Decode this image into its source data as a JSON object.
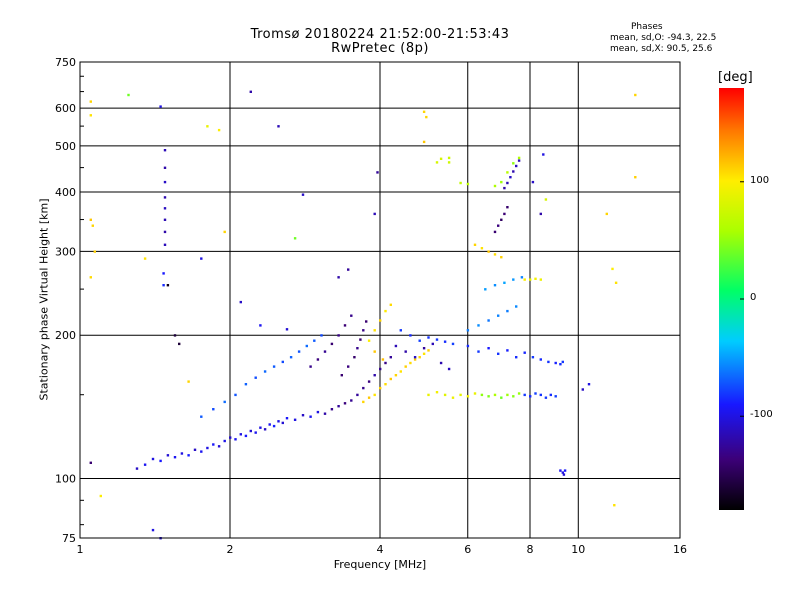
{
  "title": {
    "line1": "Tromsø 20180224 21:52:00-21:53:43",
    "line2": "RwPretec (8p)"
  },
  "phase_stats": {
    "title": "Phases",
    "mean_sd_o": "mean, sd,O: -94.3, 22.5",
    "mean_sd_x": "mean, sd,X:  90.5, 25.6"
  },
  "colorbar": {
    "label": "[deg]",
    "range": [
      -180,
      180
    ],
    "ticks": [
      "100",
      "0",
      "-100"
    ],
    "tick_values": [
      100,
      0,
      -100
    ]
  },
  "chart_data": {
    "type": "scatter",
    "xlabel": "Frequency [MHz]",
    "ylabel": "Stationary phase Virtual Height [km]",
    "x_scale": "log",
    "y_scale": "log",
    "xlim": [
      1,
      16
    ],
    "ylim": [
      75,
      750
    ],
    "xticks": [
      1,
      2,
      4,
      6,
      8,
      10,
      16
    ],
    "xtick_labels": [
      "1",
      "2",
      "4",
      "6",
      "8",
      "10",
      "16"
    ],
    "yticks": [
      75,
      100,
      200,
      300,
      400,
      500,
      600,
      750
    ],
    "ytick_labels": [
      "75",
      "100",
      "200",
      "300",
      "400",
      "500",
      "600",
      "750"
    ],
    "grid": true,
    "color_meaning": "phase [deg]",
    "points_note": "dense ionogram echoes; representative sample",
    "points": [
      [
        1.35,
        107,
        -95
      ],
      [
        1.4,
        110,
        -100
      ],
      [
        1.45,
        109,
        -90
      ],
      [
        1.5,
        112,
        -105
      ],
      [
        1.55,
        111,
        -95
      ],
      [
        1.6,
        113,
        -100
      ],
      [
        1.65,
        112,
        -88
      ],
      [
        1.7,
        115,
        -110
      ],
      [
        1.75,
        114,
        -95
      ],
      [
        1.8,
        116,
        -100
      ],
      [
        1.85,
        118,
        -92
      ],
      [
        1.9,
        117,
        -105
      ],
      [
        1.95,
        120,
        -98
      ],
      [
        2.0,
        122,
        -110
      ],
      [
        2.05,
        121,
        -95
      ],
      [
        2.1,
        124,
        -100
      ],
      [
        2.15,
        123,
        -90
      ],
      [
        2.2,
        126,
        -105
      ],
      [
        2.25,
        125,
        -95
      ],
      [
        2.3,
        128,
        -100
      ],
      [
        2.35,
        127,
        -110
      ],
      [
        2.4,
        130,
        -95
      ],
      [
        2.45,
        129,
        -88
      ],
      [
        2.5,
        132,
        -100
      ],
      [
        2.55,
        131,
        -105
      ],
      [
        2.6,
        134,
        -92
      ],
      [
        2.7,
        133,
        -100
      ],
      [
        2.8,
        136,
        -110
      ],
      [
        2.9,
        135,
        -95
      ],
      [
        3.0,
        138,
        -100
      ],
      [
        3.1,
        137,
        -120
      ],
      [
        3.2,
        140,
        -130
      ],
      [
        3.3,
        142,
        -125
      ],
      [
        3.4,
        144,
        -135
      ],
      [
        3.5,
        146,
        -128
      ],
      [
        1.75,
        135,
        -70
      ],
      [
        1.85,
        140,
        -75
      ],
      [
        1.95,
        145,
        -65
      ],
      [
        2.05,
        150,
        -72
      ],
      [
        2.15,
        158,
        -68
      ],
      [
        2.25,
        163,
        -74
      ],
      [
        2.35,
        168,
        -66
      ],
      [
        2.45,
        172,
        -70
      ],
      [
        2.55,
        176,
        -75
      ],
      [
        2.65,
        180,
        -68
      ],
      [
        2.75,
        185,
        -72
      ],
      [
        2.85,
        190,
        -65
      ],
      [
        2.95,
        195,
        -70
      ],
      [
        3.05,
        200,
        -75
      ],
      [
        2.9,
        172,
        -130
      ],
      [
        3.0,
        178,
        -135
      ],
      [
        3.1,
        185,
        -128
      ],
      [
        3.2,
        192,
        -140
      ],
      [
        3.3,
        200,
        -132
      ],
      [
        3.4,
        210,
        -138
      ],
      [
        3.5,
        220,
        -130
      ],
      [
        3.35,
        165,
        -140
      ],
      [
        3.45,
        172,
        -135
      ],
      [
        3.55,
        180,
        -142
      ],
      [
        3.6,
        188,
        -130
      ],
      [
        3.65,
        196,
        -138
      ],
      [
        3.7,
        205,
        -132
      ],
      [
        3.75,
        214,
        -140
      ],
      [
        3.6,
        150,
        -125
      ],
      [
        3.7,
        155,
        -130
      ],
      [
        3.8,
        160,
        -135
      ],
      [
        3.9,
        165,
        -120
      ],
      [
        4.0,
        170,
        -128
      ],
      [
        4.1,
        175,
        -132
      ],
      [
        4.2,
        180,
        -126
      ],
      [
        3.7,
        145,
        110
      ],
      [
        3.8,
        148,
        115
      ],
      [
        3.9,
        150,
        105
      ],
      [
        4.0,
        155,
        112
      ],
      [
        4.1,
        158,
        108
      ],
      [
        4.2,
        162,
        115
      ],
      [
        4.3,
        165,
        110
      ],
      [
        4.4,
        168,
        105
      ],
      [
        4.5,
        172,
        112
      ],
      [
        4.6,
        175,
        108
      ],
      [
        4.7,
        178,
        115
      ],
      [
        4.8,
        180,
        110
      ],
      [
        4.9,
        183,
        105
      ],
      [
        5.0,
        186,
        112
      ],
      [
        3.8,
        195,
        100
      ],
      [
        3.9,
        205,
        105
      ],
      [
        4.0,
        215,
        110
      ],
      [
        4.1,
        225,
        102
      ],
      [
        4.2,
        232,
        108
      ],
      [
        3.9,
        185,
        115
      ],
      [
        4.05,
        178,
        118
      ],
      [
        4.3,
        190,
        -115
      ],
      [
        4.5,
        185,
        -120
      ],
      [
        4.7,
        180,
        -110
      ],
      [
        4.9,
        188,
        -125
      ],
      [
        5.1,
        192,
        -115
      ],
      [
        5.3,
        175,
        -118
      ],
      [
        5.5,
        170,
        -112
      ],
      [
        4.4,
        205,
        -80
      ],
      [
        4.6,
        200,
        -85
      ],
      [
        4.8,
        195,
        -78
      ],
      [
        5.0,
        198,
        -82
      ],
      [
        5.2,
        196,
        -80
      ],
      [
        5.4,
        194,
        -84
      ],
      [
        5.6,
        192,
        -78
      ],
      [
        5.0,
        150,
        90
      ],
      [
        5.2,
        152,
        95
      ],
      [
        5.4,
        150,
        85
      ],
      [
        5.6,
        148,
        92
      ],
      [
        5.8,
        150,
        88
      ],
      [
        6.0,
        149,
        95
      ],
      [
        6.2,
        151,
        90
      ],
      [
        6.4,
        150,
        50
      ],
      [
        6.6,
        149,
        45
      ],
      [
        6.8,
        150,
        60
      ],
      [
        7.0,
        148,
        40
      ],
      [
        7.2,
        150,
        55
      ],
      [
        7.4,
        149,
        48
      ],
      [
        7.6,
        151,
        52
      ],
      [
        7.8,
        150,
        -80
      ],
      [
        8.0,
        149,
        -85
      ],
      [
        8.2,
        151,
        -78
      ],
      [
        8.4,
        150,
        -82
      ],
      [
        8.6,
        148,
        -80
      ],
      [
        8.8,
        150,
        -84
      ],
      [
        9.0,
        149,
        -78
      ],
      [
        6.0,
        190,
        -85
      ],
      [
        6.3,
        185,
        -80
      ],
      [
        6.6,
        188,
        -90
      ],
      [
        6.9,
        183,
        -82
      ],
      [
        7.2,
        186,
        -88
      ],
      [
        7.5,
        180,
        -84
      ],
      [
        7.8,
        184,
        -86
      ],
      [
        8.1,
        180,
        -80
      ],
      [
        8.4,
        178,
        -85
      ],
      [
        8.7,
        176,
        -82
      ],
      [
        9.0,
        175,
        -88
      ],
      [
        9.2,
        174,
        -84
      ],
      [
        9.3,
        176,
        -80
      ],
      [
        6.0,
        205,
        -60
      ],
      [
        6.3,
        210,
        -55
      ],
      [
        6.6,
        215,
        -62
      ],
      [
        6.9,
        220,
        -58
      ],
      [
        7.2,
        225,
        -60
      ],
      [
        7.5,
        230,
        -56
      ],
      [
        6.5,
        250,
        -50
      ],
      [
        6.8,
        255,
        -55
      ],
      [
        7.1,
        258,
        -48
      ],
      [
        7.4,
        262,
        -52
      ],
      [
        7.7,
        265,
        -58
      ],
      [
        8.0,
        262,
        90
      ],
      [
        8.2,
        263,
        95
      ],
      [
        7.8,
        262,
        100
      ],
      [
        8.4,
        262,
        92
      ],
      [
        6.2,
        310,
        110
      ],
      [
        6.4,
        305,
        105
      ],
      [
        6.6,
        300,
        115
      ],
      [
        6.8,
        296,
        108
      ],
      [
        7.0,
        292,
        112
      ],
      [
        6.8,
        330,
        -140
      ],
      [
        6.9,
        340,
        -135
      ],
      [
        7.0,
        350,
        -145
      ],
      [
        7.1,
        360,
        -138
      ],
      [
        7.2,
        372,
        -142
      ],
      [
        7.1,
        408,
        -120
      ],
      [
        7.2,
        418,
        -115
      ],
      [
        7.3,
        430,
        -110
      ],
      [
        7.4,
        442,
        -118
      ],
      [
        7.5,
        454,
        -112
      ],
      [
        7.6,
        466,
        -116
      ],
      [
        6.8,
        412,
        60
      ],
      [
        7.0,
        420,
        55
      ],
      [
        7.2,
        440,
        65
      ],
      [
        7.4,
        460,
        50
      ],
      [
        7.6,
        472,
        60
      ],
      [
        5.3,
        470,
        80
      ],
      [
        5.5,
        472,
        75
      ],
      [
        9.2,
        104,
        -95
      ],
      [
        9.3,
        103,
        -100
      ],
      [
        9.4,
        104,
        -90
      ],
      [
        9.35,
        102,
        -105
      ],
      [
        1.05,
        108,
        -140
      ],
      [
        1.3,
        105,
        -110
      ],
      [
        1.45,
        75,
        -105
      ],
      [
        1.1,
        92,
        100
      ],
      [
        1.4,
        78,
        -100
      ],
      [
        1.48,
        490,
        -115
      ],
      [
        1.48,
        450,
        -120
      ],
      [
        1.48,
        420,
        -110
      ],
      [
        1.48,
        390,
        -118
      ],
      [
        1.48,
        370,
        -112
      ],
      [
        1.48,
        350,
        -116
      ],
      [
        1.48,
        330,
        -120
      ],
      [
        1.48,
        310,
        -114
      ],
      [
        1.47,
        270,
        -90
      ],
      [
        1.47,
        255,
        -85
      ],
      [
        1.05,
        620,
        110
      ],
      [
        1.05,
        580,
        105
      ],
      [
        1.05,
        350,
        115
      ],
      [
        1.06,
        340,
        110
      ],
      [
        1.07,
        300,
        112
      ],
      [
        1.05,
        265,
        108
      ],
      [
        1.25,
        640,
        40
      ],
      [
        1.35,
        290,
        105
      ],
      [
        1.45,
        605,
        -100
      ],
      [
        1.5,
        255,
        -170
      ],
      [
        1.55,
        200,
        -160
      ],
      [
        1.8,
        550,
        90
      ],
      [
        1.9,
        540,
        100
      ],
      [
        1.95,
        330,
        110
      ],
      [
        2.2,
        650,
        -120
      ],
      [
        2.5,
        550,
        -115
      ],
      [
        2.8,
        395,
        -110
      ],
      [
        3.3,
        265,
        -120
      ],
      [
        3.45,
        275,
        -125
      ],
      [
        3.95,
        440,
        -125
      ],
      [
        3.9,
        360,
        -115
      ],
      [
        4.9,
        590,
        110
      ],
      [
        4.95,
        575,
        110
      ],
      [
        4.9,
        510,
        115
      ],
      [
        5.2,
        462,
        80
      ],
      [
        5.5,
        462,
        75
      ],
      [
        5.8,
        418,
        70
      ],
      [
        6.0,
        416,
        65
      ],
      [
        8.5,
        480,
        -100
      ],
      [
        8.1,
        420,
        -110
      ],
      [
        8.4,
        360,
        -120
      ],
      [
        8.6,
        386,
        80
      ],
      [
        10.2,
        154,
        -110
      ],
      [
        10.5,
        158,
        -100
      ],
      [
        11.7,
        276,
        100
      ],
      [
        11.9,
        258,
        105
      ],
      [
        11.4,
        360,
        110
      ],
      [
        13.0,
        430,
        112
      ],
      [
        13.0,
        640,
        110
      ],
      [
        11.8,
        88,
        105
      ],
      [
        2.7,
        320,
        40
      ],
      [
        1.58,
        192,
        -160
      ],
      [
        1.75,
        290,
        -100
      ],
      [
        2.6,
        206,
        -105
      ],
      [
        2.3,
        210,
        -95
      ],
      [
        1.65,
        160,
        110
      ],
      [
        2.1,
        235,
        -110
      ]
    ]
  }
}
